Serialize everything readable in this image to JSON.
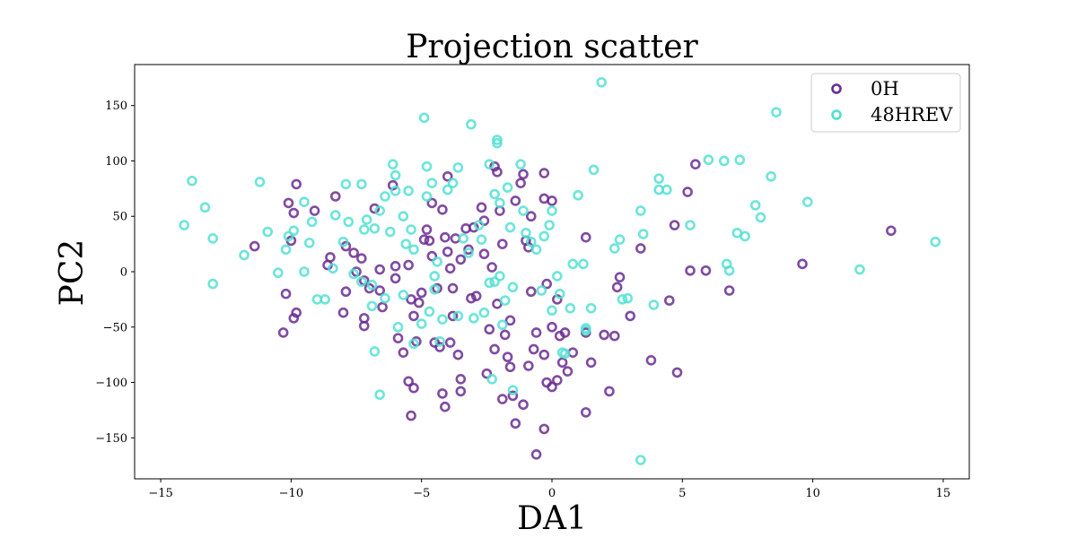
{
  "chart_data": {
    "type": "scatter",
    "title": "Projection scatter",
    "xlabel": "DA1",
    "ylabel": "PC2",
    "xlim": [
      -16,
      16
    ],
    "ylim": [
      -187,
      187
    ],
    "xticks": [
      -15,
      -10,
      -5,
      0,
      5,
      10,
      15
    ],
    "yticks": [
      -150,
      -100,
      -50,
      0,
      50,
      100,
      150
    ],
    "grid": false,
    "legend_position": "top-right",
    "series": [
      {
        "name": "0H",
        "color": "#6a2c91",
        "points": [
          [
            -10.1,
            62
          ],
          [
            -9.8,
            79
          ],
          [
            -9.9,
            53
          ],
          [
            -9.1,
            55
          ],
          [
            -10.0,
            28
          ],
          [
            -11.4,
            23
          ],
          [
            -10.2,
            -20
          ],
          [
            -9.8,
            -37
          ],
          [
            -9.9,
            -42
          ],
          [
            -10.3,
            -55
          ],
          [
            -8.6,
            6
          ],
          [
            -8.5,
            13
          ],
          [
            -8.3,
            68
          ],
          [
            -7.9,
            23
          ],
          [
            -7.6,
            17
          ],
          [
            -7.5,
            0
          ],
          [
            -7.3,
            12
          ],
          [
            -7.2,
            -8
          ],
          [
            -7.9,
            -18
          ],
          [
            -8.0,
            -37
          ],
          [
            -7.2,
            -42
          ],
          [
            -7.2,
            -49
          ],
          [
            -7.0,
            -15
          ],
          [
            -6.8,
            57
          ],
          [
            -6.6,
            2
          ],
          [
            -6.6,
            -17
          ],
          [
            -6.5,
            -32
          ],
          [
            -6.1,
            78
          ],
          [
            -6.0,
            5
          ],
          [
            -6.0,
            -6
          ],
          [
            -5.9,
            -60
          ],
          [
            -5.7,
            -73
          ],
          [
            -5.5,
            -99
          ],
          [
            -5.4,
            -130
          ],
          [
            -5.3,
            -105
          ],
          [
            -5.5,
            6
          ],
          [
            -5.4,
            -25
          ],
          [
            -5.3,
            -40
          ],
          [
            -5.0,
            -19
          ],
          [
            -5.1,
            -28
          ],
          [
            -5.2,
            -63
          ],
          [
            -4.8,
            38
          ],
          [
            -4.7,
            28
          ],
          [
            -4.6,
            62
          ],
          [
            -4.6,
            14
          ],
          [
            -4.4,
            -15
          ],
          [
            -4.5,
            -64
          ],
          [
            -4.3,
            -68
          ],
          [
            -4.2,
            -110
          ],
          [
            -4.1,
            -122
          ],
          [
            -4.2,
            56
          ],
          [
            -4.0,
            86
          ],
          [
            -4.1,
            31
          ],
          [
            -4.0,
            18
          ],
          [
            -3.9,
            3
          ],
          [
            -3.8,
            -15
          ],
          [
            -3.8,
            -40
          ],
          [
            -3.9,
            -64
          ],
          [
            -3.6,
            -75
          ],
          [
            -3.5,
            -97
          ],
          [
            -3.5,
            -108
          ],
          [
            -3.7,
            30
          ],
          [
            -3.5,
            11
          ],
          [
            -3.3,
            39
          ],
          [
            -3.2,
            20
          ],
          [
            -3.1,
            -24
          ],
          [
            -2.9,
            -22
          ],
          [
            -2.7,
            58
          ],
          [
            -2.6,
            46
          ],
          [
            -2.6,
            16
          ],
          [
            -2.3,
            4
          ],
          [
            -2.1,
            -29
          ],
          [
            -2.2,
            -70
          ],
          [
            -2.5,
            -92
          ],
          [
            -2.4,
            -52
          ],
          [
            -2.2,
            95
          ],
          [
            -2.1,
            90
          ],
          [
            -2.0,
            55
          ],
          [
            -1.9,
            25
          ],
          [
            -1.6,
            -44
          ],
          [
            -1.8,
            -57
          ],
          [
            -1.7,
            -77
          ],
          [
            -1.6,
            -86
          ],
          [
            -1.5,
            -112
          ],
          [
            -1.4,
            -137
          ],
          [
            -1.4,
            64
          ],
          [
            -1.2,
            80
          ],
          [
            -1.1,
            88
          ],
          [
            -1.0,
            28
          ],
          [
            -0.9,
            22
          ],
          [
            -0.8,
            50
          ],
          [
            -0.8,
            -18
          ],
          [
            -0.6,
            -55
          ],
          [
            -0.7,
            -70
          ],
          [
            -0.9,
            -85
          ],
          [
            -0.3,
            89
          ],
          [
            -0.3,
            66
          ],
          [
            -0.2,
            -11
          ],
          [
            -0.3,
            -75
          ],
          [
            -0.2,
            -100
          ],
          [
            -0.3,
            -142
          ],
          [
            -0.6,
            -165
          ],
          [
            0.0,
            64
          ],
          [
            0.0,
            -50
          ],
          [
            0.2,
            -25
          ],
          [
            0.3,
            -58
          ],
          [
            0.4,
            -82
          ],
          [
            0.0,
            -104
          ],
          [
            0.2,
            -98
          ],
          [
            0.5,
            -55
          ],
          [
            0.6,
            -90
          ],
          [
            0.8,
            -73
          ],
          [
            1.3,
            31
          ],
          [
            1.3,
            -55
          ],
          [
            1.3,
            -127
          ],
          [
            1.5,
            -82
          ],
          [
            2.0,
            -57
          ],
          [
            2.2,
            -108
          ],
          [
            2.4,
            -58
          ],
          [
            2.6,
            -5
          ],
          [
            2.5,
            -14
          ],
          [
            3.0,
            -40
          ],
          [
            3.4,
            21
          ],
          [
            3.8,
            -80
          ],
          [
            4.5,
            -26
          ],
          [
            4.7,
            42
          ],
          [
            4.8,
            -91
          ],
          [
            5.2,
            72
          ],
          [
            5.3,
            1
          ],
          [
            5.5,
            97
          ],
          [
            5.9,
            1
          ],
          [
            6.8,
            -17
          ],
          [
            9.6,
            7
          ],
          [
            13.0,
            37
          ],
          [
            -1.1,
            -120
          ],
          [
            -1.9,
            -115
          ],
          [
            -3.0,
            40
          ],
          [
            -4.9,
            29
          ]
        ]
      },
      {
        "name": "48HREV",
        "color": "#52e0d4",
        "points": [
          [
            -13.8,
            82
          ],
          [
            -13.3,
            58
          ],
          [
            -14.1,
            42
          ],
          [
            -13.0,
            30
          ],
          [
            -13.0,
            -11
          ],
          [
            -11.8,
            15
          ],
          [
            -11.2,
            81
          ],
          [
            -10.9,
            36
          ],
          [
            -10.5,
            -1
          ],
          [
            -10.2,
            20
          ],
          [
            -10.1,
            32
          ],
          [
            -9.9,
            37
          ],
          [
            -9.5,
            0
          ],
          [
            -9.5,
            63
          ],
          [
            -9.2,
            45
          ],
          [
            -9.3,
            26
          ],
          [
            -9.0,
            -25
          ],
          [
            -8.7,
            -25
          ],
          [
            -8.4,
            3
          ],
          [
            -8.3,
            51
          ],
          [
            -8.0,
            27
          ],
          [
            -7.9,
            79
          ],
          [
            -7.8,
            45
          ],
          [
            -7.6,
            -2
          ],
          [
            -7.3,
            79
          ],
          [
            -7.2,
            38
          ],
          [
            -7.3,
            -9
          ],
          [
            -7.1,
            47
          ],
          [
            -6.9,
            -12
          ],
          [
            -6.9,
            -31
          ],
          [
            -6.8,
            -72
          ],
          [
            -6.6,
            -111
          ],
          [
            -6.8,
            39
          ],
          [
            -6.6,
            55
          ],
          [
            -6.4,
            68
          ],
          [
            -6.4,
            -24
          ],
          [
            -6.2,
            36
          ],
          [
            -6.1,
            97
          ],
          [
            -6.0,
            87
          ],
          [
            -6.0,
            73
          ],
          [
            -5.9,
            -50
          ],
          [
            -5.7,
            -21
          ],
          [
            -5.7,
            50
          ],
          [
            -5.6,
            25
          ],
          [
            -5.5,
            73
          ],
          [
            -5.4,
            38
          ],
          [
            -5.3,
            20
          ],
          [
            -5.3,
            -65
          ],
          [
            -5.0,
            -47
          ],
          [
            -4.9,
            139
          ],
          [
            -4.8,
            95
          ],
          [
            -4.8,
            68
          ],
          [
            -4.7,
            -36
          ],
          [
            -4.6,
            80
          ],
          [
            -4.5,
            -4
          ],
          [
            -4.5,
            -16
          ],
          [
            -4.4,
            9
          ],
          [
            -4.3,
            -63
          ],
          [
            -4.2,
            -43
          ],
          [
            -4.0,
            74
          ],
          [
            -3.8,
            80
          ],
          [
            -3.6,
            94
          ],
          [
            -3.6,
            -40
          ],
          [
            -3.4,
            30
          ],
          [
            -3.2,
            17
          ],
          [
            -3.1,
            133
          ],
          [
            -3.0,
            -42
          ],
          [
            -2.8,
            42
          ],
          [
            -2.7,
            29
          ],
          [
            -2.6,
            -37
          ],
          [
            -2.4,
            97
          ],
          [
            -2.4,
            -10
          ],
          [
            -2.3,
            -97
          ],
          [
            -2.2,
            70
          ],
          [
            -2.1,
            119
          ],
          [
            -2.1,
            116
          ],
          [
            -2.0,
            62
          ],
          [
            -2.0,
            -4
          ],
          [
            -1.9,
            -48
          ],
          [
            -1.8,
            -26
          ],
          [
            -1.7,
            76
          ],
          [
            -1.6,
            40
          ],
          [
            -1.5,
            -14
          ],
          [
            -1.5,
            -107
          ],
          [
            -1.2,
            97
          ],
          [
            -1.1,
            55
          ],
          [
            -1.0,
            35
          ],
          [
            -0.8,
            27
          ],
          [
            -0.6,
            20
          ],
          [
            -0.4,
            -17
          ],
          [
            -0.3,
            32
          ],
          [
            -0.1,
            42
          ],
          [
            0.0,
            55
          ],
          [
            0.0,
            -35
          ],
          [
            0.2,
            -4
          ],
          [
            0.3,
            -20
          ],
          [
            0.5,
            -74
          ],
          [
            0.7,
            -33
          ],
          [
            0.8,
            7
          ],
          [
            1.0,
            69
          ],
          [
            1.2,
            7
          ],
          [
            1.3,
            -51
          ],
          [
            1.5,
            -33
          ],
          [
            1.6,
            92
          ],
          [
            1.9,
            171
          ],
          [
            2.4,
            21
          ],
          [
            2.6,
            29
          ],
          [
            2.7,
            -25
          ],
          [
            2.9,
            -24
          ],
          [
            3.4,
            55
          ],
          [
            3.5,
            34
          ],
          [
            3.9,
            -30
          ],
          [
            4.1,
            84
          ],
          [
            4.1,
            74
          ],
          [
            4.4,
            74
          ],
          [
            5.3,
            42
          ],
          [
            6.0,
            101
          ],
          [
            6.6,
            100
          ],
          [
            6.8,
            1
          ],
          [
            6.7,
            7
          ],
          [
            7.1,
            35
          ],
          [
            7.2,
            101
          ],
          [
            7.4,
            32
          ],
          [
            7.8,
            60
          ],
          [
            8.0,
            49
          ],
          [
            8.4,
            86
          ],
          [
            8.6,
            144
          ],
          [
            9.8,
            63
          ],
          [
            11.8,
            2
          ],
          [
            14.7,
            27
          ],
          [
            3.4,
            -170
          ],
          [
            -2.2,
            -9
          ],
          [
            1.3,
            -53
          ],
          [
            0.4,
            -73
          ]
        ]
      }
    ]
  }
}
